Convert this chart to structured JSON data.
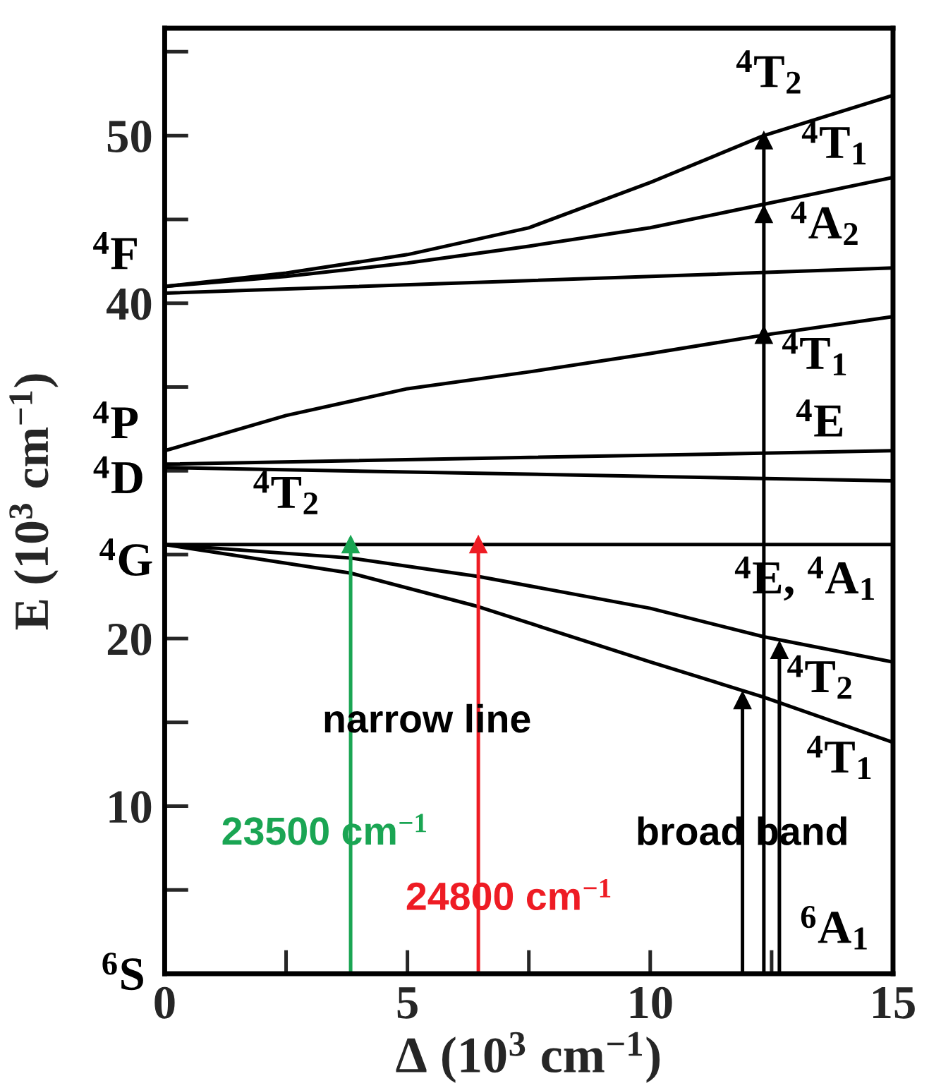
{
  "chart_data": {
    "type": "line",
    "xlabel": "Δ (10$^{3}$ cm$^{−1}$)",
    "ylabel": "E (10$^{3}$ cm$^{−1}$)",
    "xlim": [
      0,
      15
    ],
    "ylim": [
      0,
      56.4
    ],
    "xticks": [
      0,
      5,
      10,
      15
    ],
    "yticks": [
      10,
      20,
      40,
      50
    ],
    "grid": false,
    "legend": false,
    "line_style": "solid",
    "series": [
      {
        "color": "#000000",
        "x": [
          0,
          2.5,
          5,
          7.5,
          10,
          12.34,
          15
        ],
        "values": [
          41.0,
          41.8,
          42.9,
          44.5,
          47.2,
          50.0,
          52.4
        ]
      },
      {
        "color": "#000000",
        "x": [
          0,
          2.5,
          5,
          7.5,
          10,
          12.34,
          15
        ],
        "values": [
          41.0,
          41.6,
          42.4,
          43.4,
          44.5,
          45.9,
          47.5
        ]
      },
      {
        "color": "#000000",
        "x": [
          0,
          15
        ],
        "values": [
          40.6,
          42.1
        ]
      },
      {
        "color": "#000000",
        "x": [
          0,
          2.5,
          5,
          7.5,
          10,
          12.34,
          15
        ],
        "values": [
          31.2,
          33.3,
          34.9,
          35.9,
          37.0,
          38.1,
          39.2
        ]
      },
      {
        "color": "#000000",
        "x": [
          0,
          15
        ],
        "values": [
          30.4,
          31.2
        ]
      },
      {
        "color": "#000000",
        "x": [
          0,
          15
        ],
        "values": [
          30.2,
          29.4
        ]
      },
      {
        "color": "#000000",
        "x": [
          0,
          15
        ],
        "values": [
          25.6,
          25.6
        ]
      },
      {
        "color": "#000000",
        "x": [
          0,
          3.83,
          6.46,
          10,
          12.34,
          15
        ],
        "values": [
          25.6,
          24.8,
          23.7,
          21.8,
          20.1,
          18.6
        ]
      },
      {
        "color": "#000000",
        "x": [
          0,
          3.83,
          6.46,
          10,
          12.34,
          15
        ],
        "values": [
          25.6,
          23.9,
          21.9,
          18.6,
          16.5,
          13.8
        ]
      },
      {
        "color": "#1aa553",
        "x": [
          3.83,
          3.83
        ],
        "values": [
          0,
          25.6
        ],
        "marker": "triangle"
      },
      {
        "color": "#ee1c24",
        "x": [
          6.46,
          6.46
        ],
        "values": [
          0,
          25.6
        ],
        "marker": "triangle"
      },
      {
        "color": "#000000",
        "x": [
          11.9,
          11.9
        ],
        "values": [
          0,
          16.3
        ],
        "marker": "triangle"
      },
      {
        "color": "#000000",
        "x": [
          12.66,
          12.66
        ],
        "values": [
          0,
          19.3
        ],
        "marker": "triangle"
      },
      {
        "color": "#000000",
        "x": [
          12.34,
          12.34,
          12.34,
          12.34
        ],
        "values": [
          0,
          38.1,
          45.3,
          49.7
        ],
        "marker": "triangle"
      }
    ],
    "annotations": [
      "$^{4}$T$_{2}$",
      "$^{4}$T$_{1}$",
      "$^{4}$A$_{2}$",
      "$^{4}$T$_{1}$",
      "$^{4}$E",
      "$^{4}$T$_{2}$",
      "$^{4}$E, $^{4}$A$_{1}$",
      "$^{4}$T$_{2}$",
      "$^{4}$T$_{1}$",
      "$^{6}$A$_{1}$",
      "$^{4}$F",
      "$^{4}$P",
      "$^{4}$D",
      "$^{4}$G",
      "$^{6}$S",
      "narrow line",
      "broad band",
      "23500 cm$^{−1}$",
      "24800 cm$^{−1}$"
    ]
  }
}
